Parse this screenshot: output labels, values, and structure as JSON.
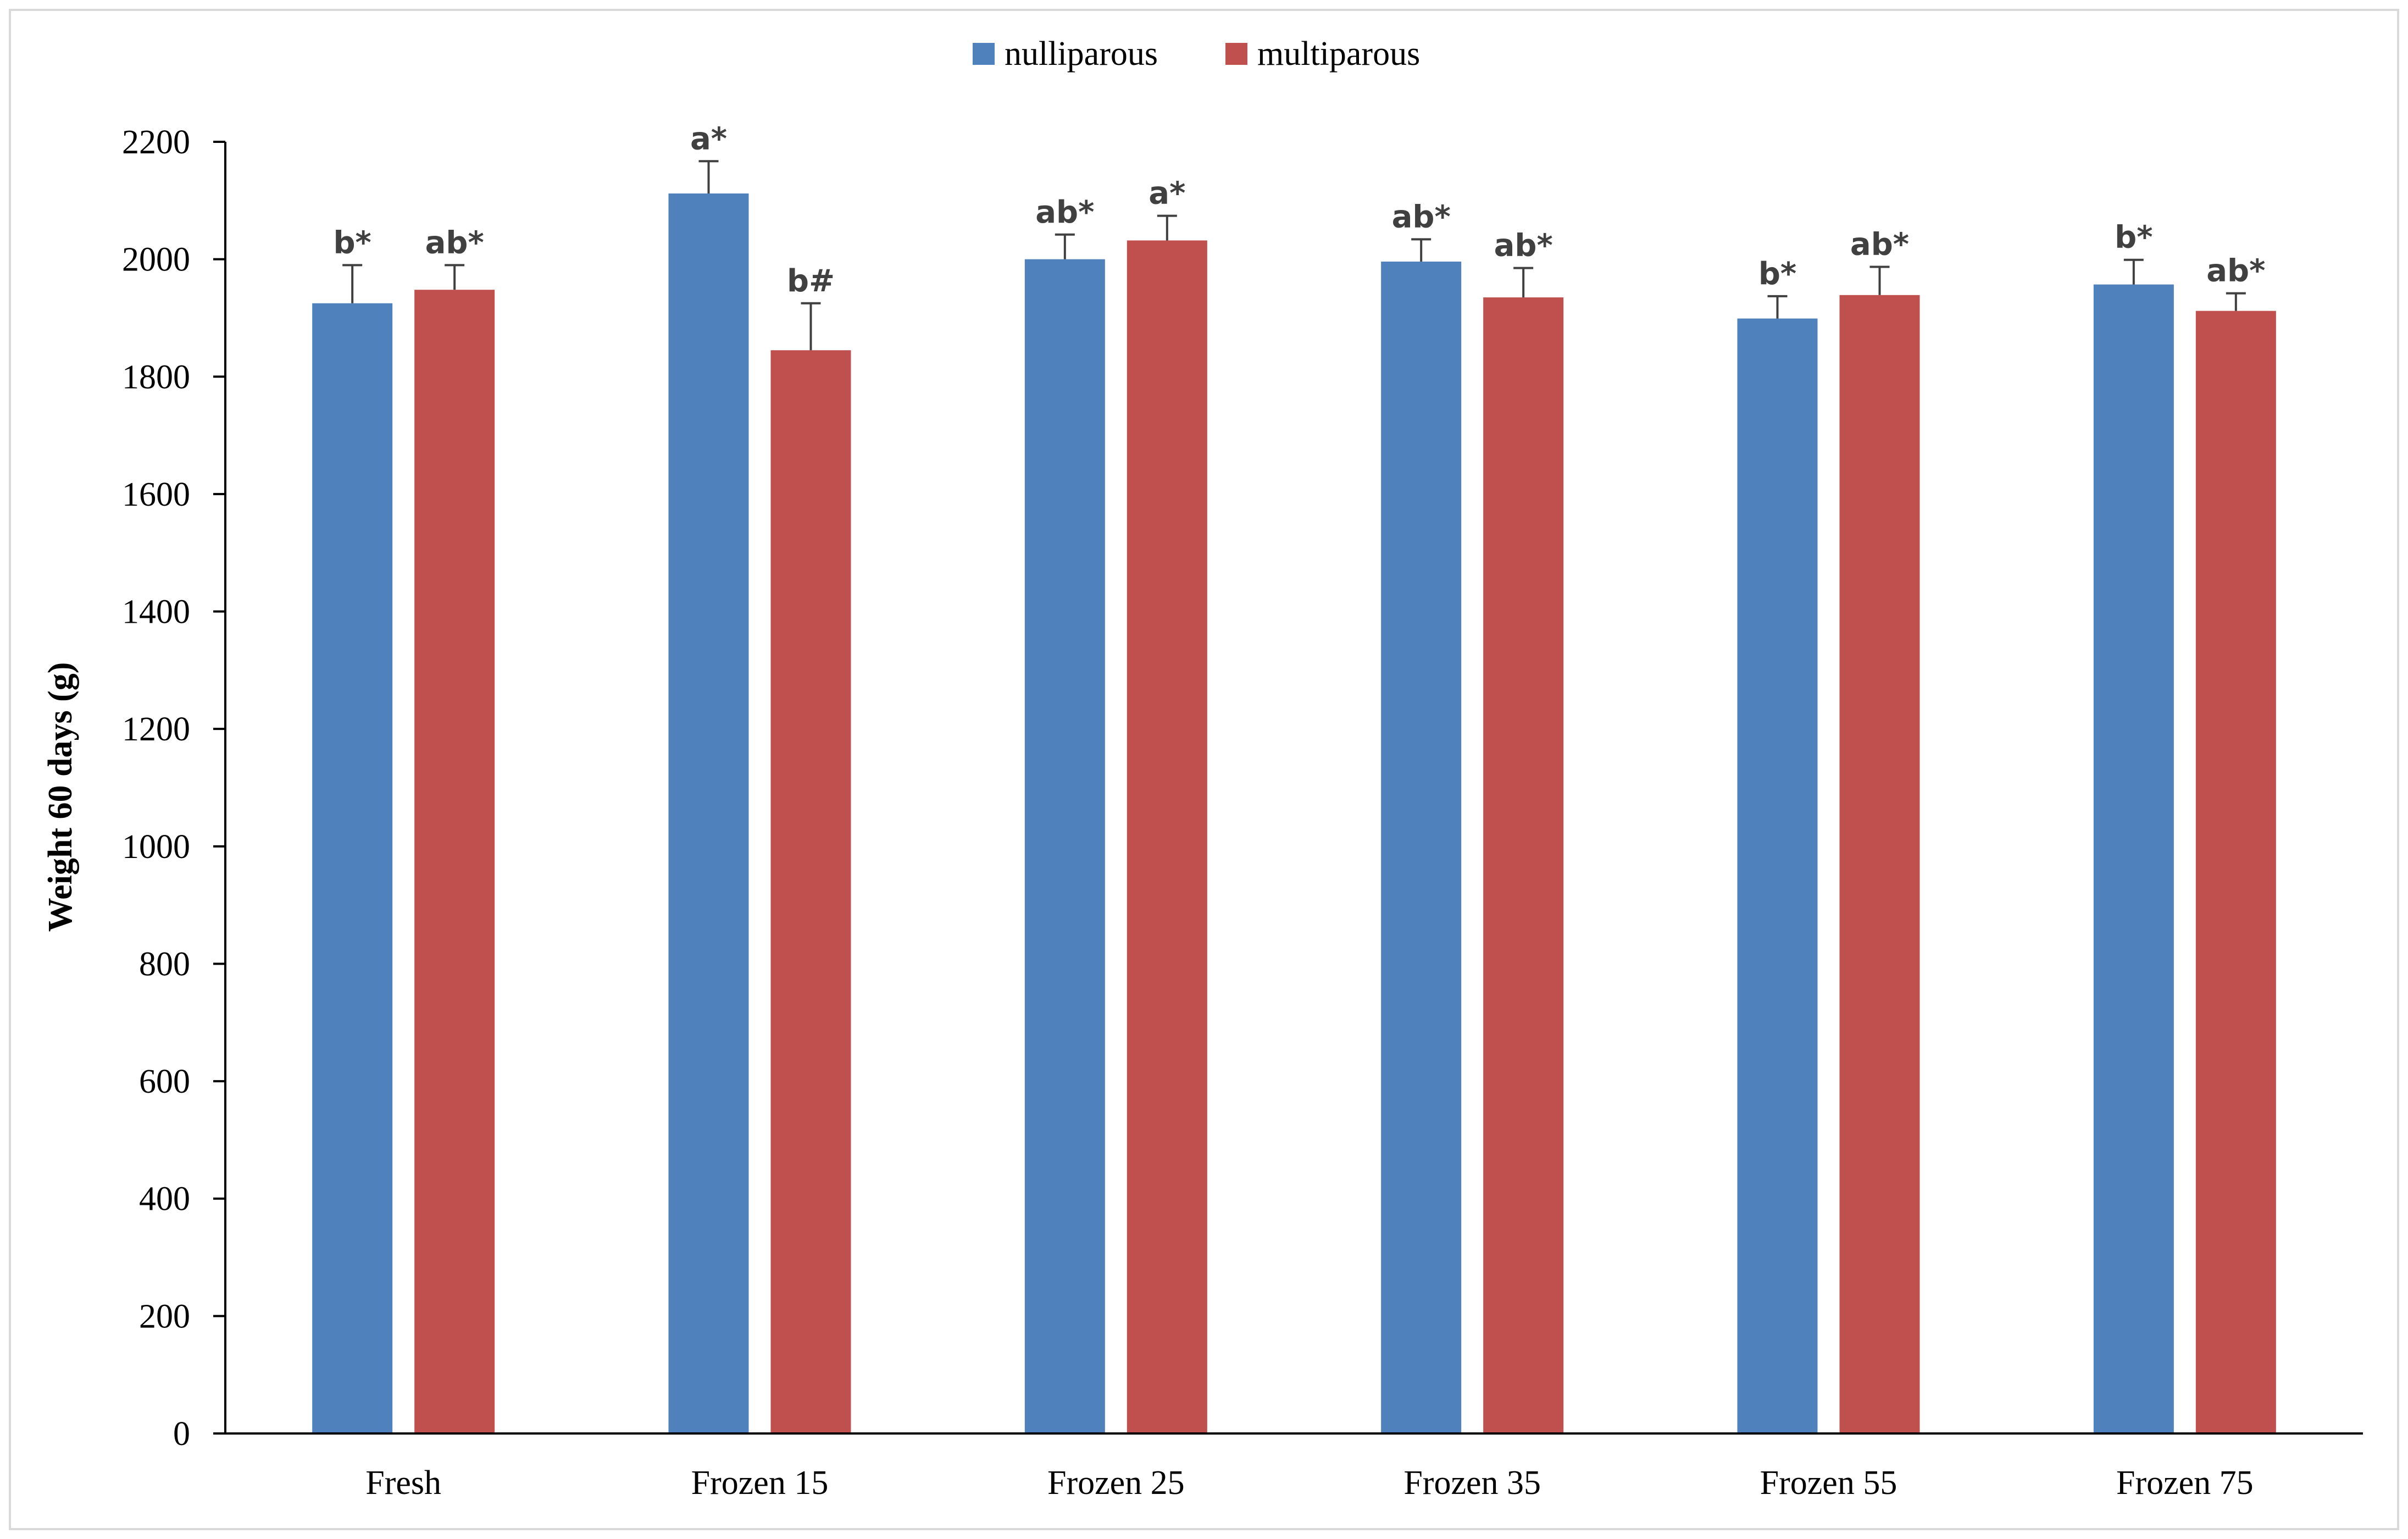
{
  "chart_data": {
    "type": "bar",
    "title": "",
    "xlabel": "",
    "ylabel": "Weight 60 days (g)",
    "ylim": [
      0,
      2200
    ],
    "ytick_step": 200,
    "grid": false,
    "legend_position": "top-center",
    "categories": [
      "Fresh",
      "Frozen 15",
      "Frozen 25",
      "Frozen 35",
      "Frozen 55",
      "Frozen 75"
    ],
    "series": [
      {
        "name": "nulliparous",
        "color": "#4f81bd",
        "values": [
          1925,
          2112,
          2000,
          1996,
          1899,
          1957
        ],
        "errors": [
          65,
          55,
          42,
          38,
          38,
          42
        ],
        "labels": [
          "b*",
          "a*",
          "ab*",
          "ab*",
          "b*",
          "b*"
        ]
      },
      {
        "name": "multiparous",
        "color": "#c0504d",
        "values": [
          1948,
          1845,
          2032,
          1935,
          1939,
          1912
        ],
        "errors": [
          42,
          80,
          42,
          50,
          48,
          30
        ],
        "labels": [
          "ab*",
          "b#",
          "a*",
          "ab*",
          "ab*",
          "ab*"
        ]
      }
    ]
  }
}
